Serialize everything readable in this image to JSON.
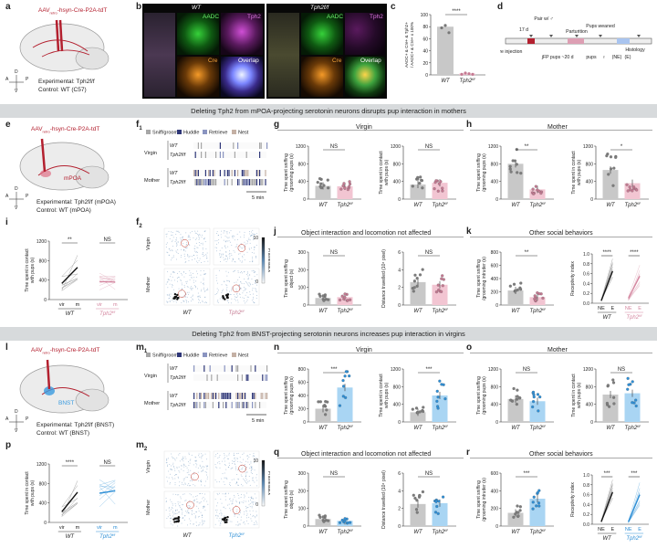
{
  "panel_labels": {
    "a": "a",
    "b": "b",
    "c": "c",
    "d": "d",
    "e": "e",
    "f1": "f",
    "f1_sub": "1",
    "f2": "f",
    "f2_sub": "2",
    "g": "g",
    "h": "h",
    "i": "i",
    "j": "j",
    "k": "k",
    "l": "l",
    "m1": "m",
    "m1_sub": "1",
    "m2": "m",
    "m2_sub": "2",
    "n": "n",
    "o": "o",
    "p": "p",
    "q": "q",
    "r": "r"
  },
  "banners": {
    "mpoa": "Deleting Tph2 from mPOA-projecting serotonin neurons disrupts pup interaction in mothers",
    "bnst": "Deleting Tph2 from BNST-projecting serotonin neurons increases pup interaction in virgins"
  },
  "virus": {
    "a": "AAV",
    "a_sub": "retro",
    "a_rest": "-hsyn-Cre-P2A-tdT",
    "e": "AAV",
    "e_sub": "retro",
    "e_rest": "-hsyn-Cre-P2A-tdT",
    "l": "AAV",
    "l_sub": "retro",
    "l_rest": "-hsyn-Cre-P2A-tdT"
  },
  "experimental": {
    "a": "Experimental: Tph2f/f",
    "a_ctrl": "Control: WT (C57)",
    "e": "Experimental: Tph2f/f (mPOA)",
    "e_ctrl": "Control: WT (mPOA)",
    "l": "Experimental: Tph2f/f (BNST)",
    "l_ctrl": "Control: WT (BNST)"
  },
  "region_labels": {
    "mpoa": "mPOA",
    "bnst": "BNST"
  },
  "axes_dir": {
    "a": "A",
    "p": "P",
    "d": "D",
    "v": "V"
  },
  "micro": {
    "wt_title": "WT",
    "tph_title": "Tph2f/f",
    "aadc": "AADC",
    "tph2": "Tph2",
    "cre": "Cre",
    "overlap": "Overlap"
  },
  "c": {
    "ylabel": "AADC+ & Cre+ & Tph2+ / AADC+ & Cre+ x 100%",
    "sig": "****",
    "xlabels": [
      "WT",
      "Tph2f/f"
    ],
    "values": [
      80,
      2
    ],
    "ylim": [
      0,
      100
    ],
    "yticks": [
      "0",
      "20",
      "40",
      "60",
      "80",
      "100"
    ]
  },
  "d": {
    "labels": [
      "Cre injection",
      "17 d",
      "Pair w/ ♂",
      "jFP pups",
      "~20 d",
      "Parturition",
      "pups",
      "♀",
      "Pups weaned",
      "(NE)",
      "(E)",
      "Histology"
    ]
  },
  "ethogram": {
    "legend": [
      "Sniff/groom",
      "Huddle",
      "Retrieve",
      "Nest"
    ],
    "colors": [
      "#a7a7a7",
      "#2f3778",
      "#8a94c0",
      "#c4b0a4"
    ],
    "rows": [
      "Virgin",
      "Mother"
    ],
    "genos": [
      "WT",
      "Tph2f/f"
    ],
    "scale": "5 min"
  },
  "heat": {
    "rows": [
      "Virgin",
      "Mother"
    ],
    "cols": [
      "WT",
      "Tph2f/f"
    ],
    "colorbar": "Framestack",
    "cbmax": "10",
    "cbmin": "0"
  },
  "g": {
    "title": "Virgin",
    "plots": [
      {
        "ylabel": "Time spent sniffing /grooming pups (s)",
        "sig": "NS",
        "values": [
          300,
          290
        ],
        "ylim": [
          0,
          1200
        ],
        "yticks": [
          "0",
          "400",
          "800",
          "1200"
        ]
      },
      {
        "ylabel": "Time spent in contact with pups (s)",
        "sig": "NS",
        "values": [
          330,
          370
        ],
        "ylim": [
          0,
          1200
        ],
        "yticks": [
          "0",
          "400",
          "800",
          "1200"
        ]
      }
    ]
  },
  "h": {
    "title": "Mother",
    "plots": [
      {
        "ylabel": "Time spent sniffing /grooming pups (s)",
        "sig": "**",
        "values": [
          800,
          220
        ],
        "ylim": [
          0,
          1200
        ],
        "yticks": [
          "0",
          "400",
          "800",
          "1200"
        ]
      },
      {
        "ylabel": "Time spent in contact with pups (s)",
        "sig": "*",
        "values": [
          660,
          360
        ],
        "ylim": [
          0,
          1200
        ],
        "yticks": [
          "0",
          "400",
          "800",
          "1200"
        ]
      }
    ]
  },
  "i": {
    "ylabel": "Time spent in contact with pups (s)",
    "sig": [
      "**",
      "NS"
    ],
    "xlabels": [
      "vir",
      "m",
      "vir",
      "m"
    ],
    "groups": [
      "WT",
      "Tph2f/f"
    ],
    "yticks": [
      "0",
      "400",
      "800",
      "1200"
    ],
    "wt": [
      330,
      660
    ],
    "tph": [
      370,
      360
    ]
  },
  "j": {
    "title": "Object interaction and locomotion not affected",
    "plots": [
      {
        "ylabel": "Time spent sniffing object (s)",
        "sig": "NS",
        "values": [
          40,
          45
        ],
        "ylim": [
          0,
          300
        ],
        "yticks": [
          "0",
          "100",
          "200",
          "300"
        ]
      },
      {
        "ylabel": "Distance travelled (10⁴ pixel)",
        "sig": "NS",
        "values": [
          2.6,
          2.3
        ],
        "ylim": [
          0,
          6
        ],
        "yticks": [
          "0",
          "2",
          "4",
          "6"
        ]
      }
    ]
  },
  "k": {
    "title": "Other social behaviors",
    "plots": [
      {
        "ylabel": "Time spent sniffing /grooming intruder (s)",
        "sig": "**",
        "values": [
          220,
          120
        ],
        "ylim": [
          0,
          800
        ],
        "yticks": [
          "0",
          "200",
          "400",
          "600",
          "800"
        ]
      }
    ],
    "recept": {
      "ylabel": "Receptivity index",
      "sig": [
        "****",
        "****"
      ],
      "xlabels": [
        "NE",
        "E",
        "NE",
        "E"
      ],
      "groups": [
        "WT",
        "Tph2f/f"
      ],
      "yticks": [
        "0.0",
        "0.2",
        "0.4",
        "0.6",
        "0.8",
        "1.0"
      ],
      "wt": [
        0.05,
        0.65
      ],
      "tph": [
        0.1,
        0.55
      ]
    }
  },
  "n": {
    "title": "Virgin",
    "plots": [
      {
        "ylabel": "Time spent sniffing /grooming pups (s)",
        "sig": "***",
        "values": [
          200,
          520
        ],
        "ylim": [
          0,
          800
        ],
        "yticks": [
          "0",
          "200",
          "400",
          "600",
          "800"
        ]
      },
      {
        "ylabel": "Time spent in contact with pups (s)",
        "sig": "***",
        "values": [
          220,
          600
        ],
        "ylim": [
          0,
          1200
        ],
        "yticks": [
          "0",
          "400",
          "800",
          "1200"
        ]
      }
    ]
  },
  "o": {
    "title": "Mother",
    "plots": [
      {
        "ylabel": "Time spent sniffing /grooming pups (s)",
        "sig": "NS",
        "values": [
          520,
          470
        ],
        "ylim": [
          0,
          1200
        ],
        "yticks": [
          "0",
          "400",
          "800",
          "1200"
        ]
      },
      {
        "ylabel": "Time spent in contact with pups (s)",
        "sig": "NS",
        "values": [
          620,
          650
        ],
        "ylim": [
          0,
          1200
        ],
        "yticks": [
          "0",
          "400",
          "800",
          "1200"
        ]
      }
    ]
  },
  "p": {
    "ylabel": "Time spent in contact with pups (s)",
    "sig": [
      "****",
      "NS"
    ],
    "xlabels": [
      "vir",
      "m",
      "vir",
      "m"
    ],
    "groups": [
      "WT",
      "Tph2f/f"
    ],
    "yticks": [
      "0",
      "400",
      "800",
      "1200"
    ],
    "wt": [
      220,
      620
    ],
    "tph": [
      600,
      650
    ]
  },
  "q": {
    "title": "Object interaction and locomotion not affected",
    "plots": [
      {
        "ylabel": "Time spent sniffing object (s)",
        "sig": "NS",
        "values": [
          40,
          30
        ],
        "ylim": [
          0,
          300
        ],
        "yticks": [
          "0",
          "100",
          "200",
          "300"
        ]
      },
      {
        "ylabel": "Distance travelled (10⁴ pixel)",
        "sig": "NS",
        "values": [
          2.5,
          2.6
        ],
        "ylim": [
          0,
          6
        ],
        "yticks": [
          "0",
          "2",
          "4",
          "6"
        ]
      }
    ]
  },
  "r": {
    "title": "Other social behaviors",
    "plots": [
      {
        "ylabel": "Time spent sniffing /grooming intruder (s)",
        "sig": "***",
        "values": [
          150,
          310
        ],
        "ylim": [
          0,
          600
        ],
        "yticks": [
          "0",
          "200",
          "400",
          "600"
        ]
      }
    ],
    "recept": {
      "ylabel": "Receptivity index",
      "sig": [
        "***",
        "***"
      ],
      "xlabels": [
        "NE",
        "E",
        "NE",
        "E"
      ],
      "groups": [
        "WT",
        "Tph2f/f"
      ],
      "yticks": [
        "0.0",
        "0.2",
        "0.4",
        "0.6",
        "0.8",
        "1.0"
      ],
      "wt": [
        0.05,
        0.65
      ],
      "tph": [
        0.05,
        0.6
      ]
    }
  },
  "xcat": [
    "WT",
    "Tph2f/f"
  ],
  "colors": {
    "wt": "#b9b9b9",
    "tph_pink": "#f1c2cf",
    "tph_pink_dot": "#c47a92",
    "tph_blue": "#a8d4f2",
    "tph_blue_dot": "#2e8fd6",
    "virus": "#b3202f",
    "bnst": "#3a9be0"
  }
}
